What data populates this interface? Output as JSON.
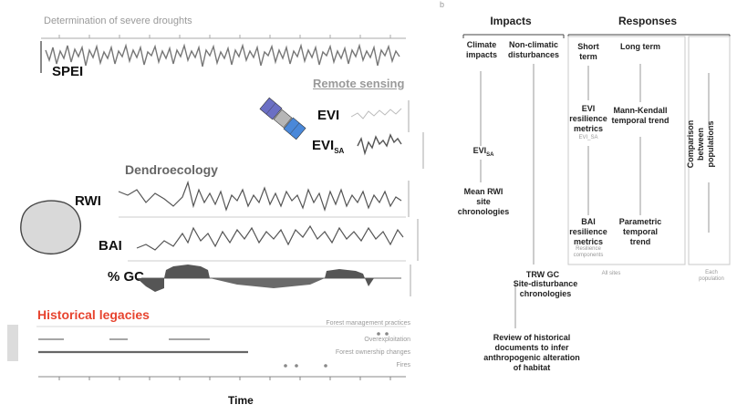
{
  "left": {
    "spei_title": "Determination of severe droughts",
    "spei_label": "SPEI",
    "remote_title": "Remote sensing",
    "evi_label": "EVI",
    "evisa_label": "EVI",
    "evisa_sub": "SA",
    "dendro_title": "Dendroecology",
    "rwi_label": "RWI",
    "bai_label": "BAI",
    "gc_label": "% GC",
    "historical_title": "Historical legacies",
    "hist_rows": [
      "Forest management practices",
      "Overexploitation",
      "Forest ownership changes",
      "Fires"
    ],
    "time_label": "Time"
  },
  "right": {
    "panel_letter": "b",
    "impacts_head": "Impacts",
    "responses_head": "Responses",
    "climate_impacts": "Climate impacts",
    "nonclimatic": "Non-climatic disturbances",
    "evi_sa": "EVI",
    "evi_sa_sub": "SA",
    "mean_rwi": "Mean RWI site chronologies",
    "trw_gc": "TRW   GC",
    "disturbance_chron": "Site-disturbance chronologies",
    "review_hist": "Review of historical documents to infer anthropogenic alteration of habitat",
    "short_term": "Short term",
    "long_term": "Long term",
    "evi_resilience": "EVI resilience metrics",
    "evi_resilience_sub": "EVI_SA",
    "mann_kendall": "Mann-Kendall temporal trend",
    "bai_resilience": "BAI resilience metrics",
    "bai_resilience_sub": "Resilience components",
    "parametric_trend": "Parametric temporal trend",
    "comparison": "Comparison between populations",
    "all_sites": "All sites",
    "per_population": "Each population"
  },
  "colors": {
    "faded_text": "#9a9a9a",
    "series_line": "#444444",
    "gc_fill": "#555555",
    "historical_title": "#e7442f",
    "panel_border": "#c8c8c8"
  }
}
